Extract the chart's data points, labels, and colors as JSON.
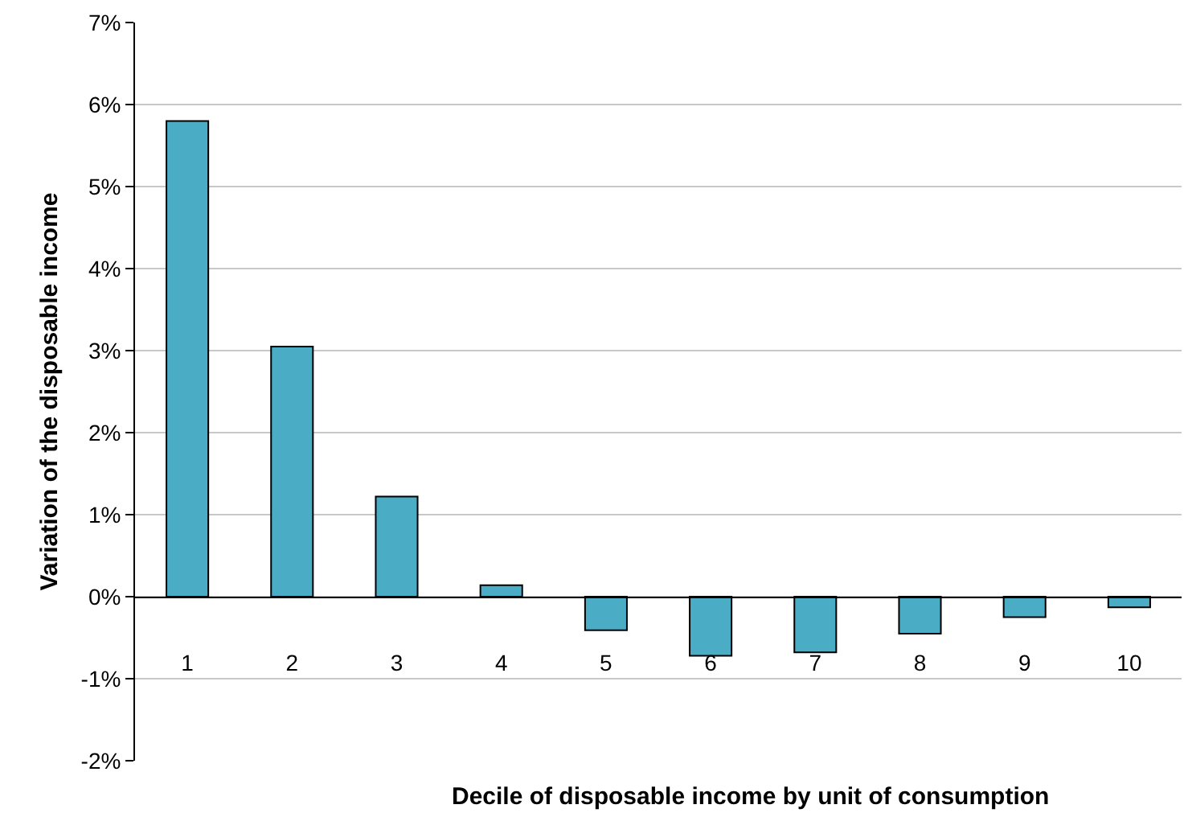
{
  "chart_data": {
    "type": "bar",
    "xlabel": "Decile of disposable income by unit of consumption",
    "ylabel": "Variation of the disposable income",
    "categories": [
      "1",
      "2",
      "3",
      "4",
      "5",
      "6",
      "7",
      "8",
      "9",
      "10"
    ],
    "values": [
      5.8,
      3.05,
      1.22,
      0.14,
      -0.41,
      -0.72,
      -0.68,
      -0.45,
      -0.25,
      -0.13
    ],
    "color": "#4bacc6",
    "ylim": [
      -2,
      7
    ],
    "yticks": [
      {
        "value": -2,
        "label": "-2%"
      },
      {
        "value": -1,
        "label": "-1%"
      },
      {
        "value": 0,
        "label": "0%"
      },
      {
        "value": 1,
        "label": "1%"
      },
      {
        "value": 2,
        "label": "2%"
      },
      {
        "value": 3,
        "label": "3%"
      },
      {
        "value": 4,
        "label": "4%"
      },
      {
        "value": 5,
        "label": "5%"
      },
      {
        "value": 6,
        "label": "6%"
      },
      {
        "value": 7,
        "label": "7%"
      }
    ],
    "grid": "y",
    "legend": false
  }
}
